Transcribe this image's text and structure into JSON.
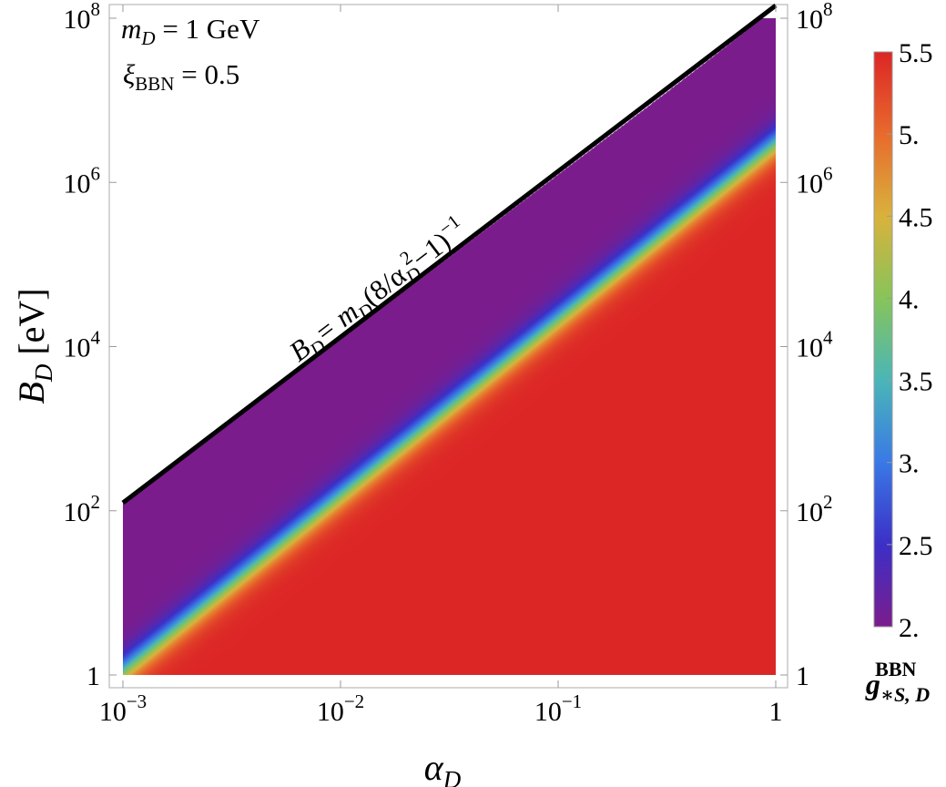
{
  "chart_data": {
    "type": "heatmap",
    "x_scale": "log",
    "y_scale": "log",
    "xlim": [
      0.001,
      1
    ],
    "ylim": [
      1,
      100000000
    ],
    "xlabel": {
      "base": "α",
      "sub": "D"
    },
    "ylabel": {
      "base": "B",
      "sub": "D",
      "suffix": " [eV]"
    },
    "x_ticks": [
      {
        "value": 0.001,
        "base": "10",
        "exp": "−3"
      },
      {
        "value": 0.01,
        "base": "10",
        "exp": "−2"
      },
      {
        "value": 0.1,
        "base": "10",
        "exp": "−1"
      },
      {
        "value": 1,
        "base": "1",
        "exp": ""
      }
    ],
    "y_ticks": [
      {
        "value": 1,
        "base": "1",
        "exp": ""
      },
      {
        "value": 100,
        "base": "10",
        "exp": "2"
      },
      {
        "value": 10000,
        "base": "10",
        "exp": "4"
      },
      {
        "value": 1000000,
        "base": "10",
        "exp": "6"
      },
      {
        "value": 100000000,
        "base": "10",
        "exp": "8"
      }
    ],
    "annotations": {
      "mass": {
        "sym": "m",
        "sub": "D",
        "rest": " = 1 GeV"
      },
      "xi": {
        "sym": "ξ",
        "sub": "BBN",
        "rest": " = 0.5"
      }
    },
    "boundary": {
      "relation": "B_D = m_D (8/α_D^2 − 1)^(-1)",
      "m_D_eV": 1000000000,
      "line_label": {
        "p1": "B",
        "p1sub": "D",
        "p2": "= m",
        "p2sub": "D",
        "p3": "(8/α",
        "p3sub": "D",
        "p3sup": "2",
        "p4": "−1)",
        "p4sup": "−1"
      }
    },
    "transition": {
      "description": "g*S,D^BBN goes from 5.5 (lower right) to 2 (upper left) across a band",
      "midline_points": [
        {
          "alpha": 0.001,
          "B": 1.1
        },
        {
          "alpha": 1,
          "B": 3000000
        }
      ],
      "width_decades": 0.45
    },
    "colorbar": {
      "min": 2,
      "max": 5.5,
      "ticks": [
        "2.",
        "2.5",
        "3.",
        "3.5",
        "4.",
        "4.5",
        "5.",
        "5.5"
      ],
      "tick_values": [
        2,
        2.5,
        3,
        3.5,
        4,
        4.5,
        5,
        5.5
      ],
      "title": {
        "base": "g",
        "sub": "∗S, D",
        "sup": "BBN"
      },
      "stops": [
        {
          "v": 2.0,
          "color": "#7b1c8c"
        },
        {
          "v": 2.5,
          "color": "#3c2fc7"
        },
        {
          "v": 3.0,
          "color": "#3979e6"
        },
        {
          "v": 3.5,
          "color": "#4ab6b7"
        },
        {
          "v": 4.0,
          "color": "#87c45a"
        },
        {
          "v": 4.5,
          "color": "#d9b23c"
        },
        {
          "v": 5.0,
          "color": "#e86a2c"
        },
        {
          "v": 5.5,
          "color": "#dc2626"
        }
      ]
    }
  }
}
